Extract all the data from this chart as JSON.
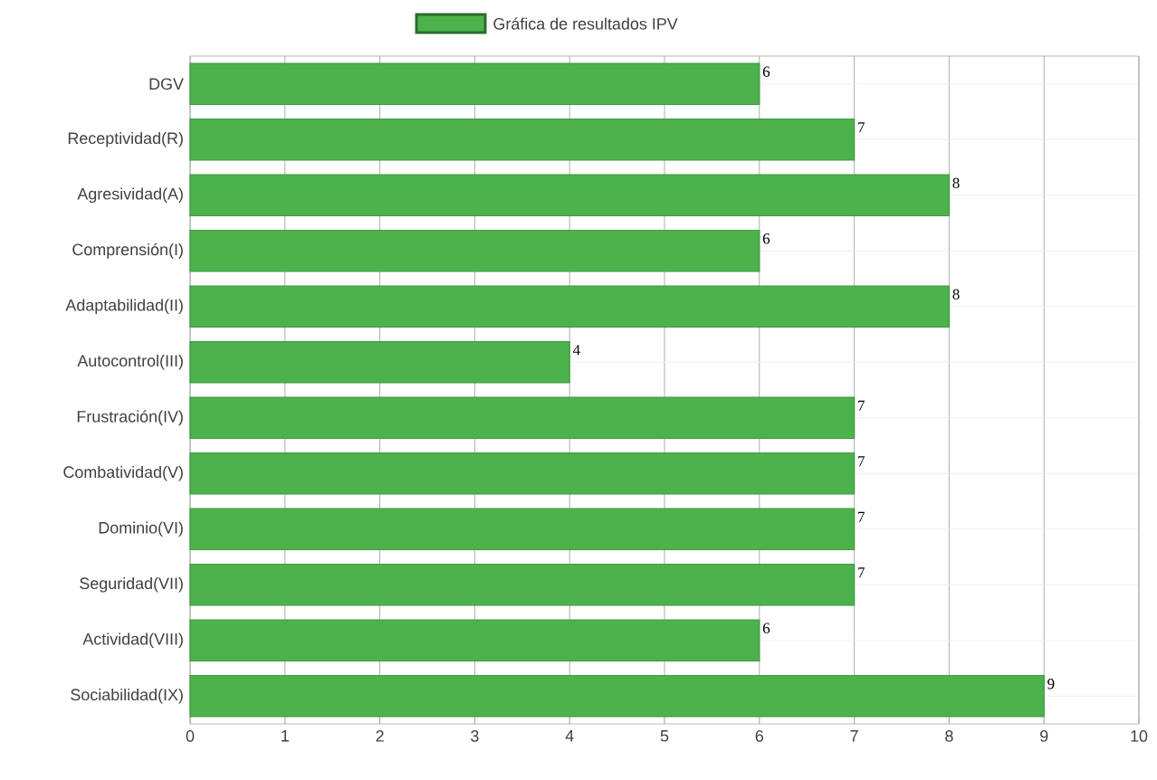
{
  "chart_data": {
    "type": "bar",
    "orientation": "horizontal",
    "categories": [
      "DGV",
      "Receptividad(R)",
      "Agresividad(A)",
      "Comprensión(I)",
      "Adaptabilidad(II)",
      "Autocontrol(III)",
      "Frustración(IV)",
      "Combatividad(V)",
      "Dominio(VI)",
      "Seguridad(VII)",
      "Actividad(VIII)",
      "Sociabilidad(IX)"
    ],
    "series": [
      {
        "name": "Gráfica de resultados IPV",
        "color": "#4cb34c",
        "values": [
          6,
          7,
          8,
          6,
          8,
          4,
          7,
          7,
          7,
          7,
          6,
          9
        ]
      }
    ],
    "xlim": [
      0,
      10
    ],
    "xticks": [
      0,
      1,
      2,
      3,
      4,
      5,
      6,
      7,
      8,
      9,
      10
    ],
    "grid": true,
    "legend": "top",
    "data_labels": true
  }
}
